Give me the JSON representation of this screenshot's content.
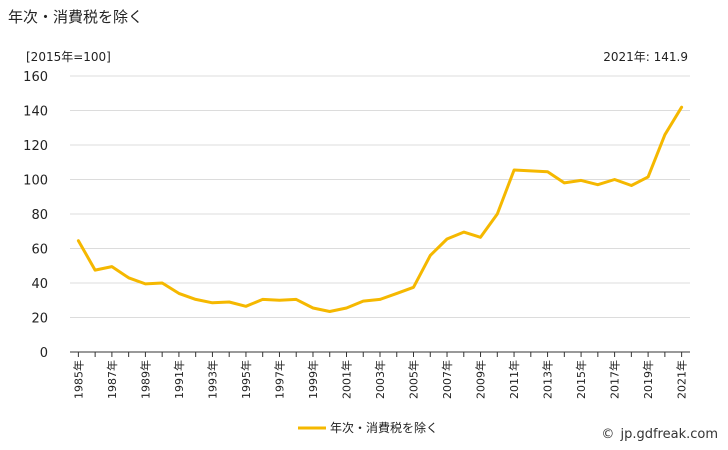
{
  "header": {
    "title": "年次・消費税を除く",
    "unit": "[2015年=100]",
    "latest_label": "2021年: 141.9"
  },
  "footer": {
    "credit_mark": "©",
    "credit": "jp.gdfreak.com"
  },
  "colors": {
    "series": "#f5b800",
    "grid": "#dcdcdc",
    "axis": "#333333"
  },
  "chart_data": {
    "type": "line",
    "title": "年次・消費税を除く",
    "xlabel": "",
    "ylabel": "",
    "ylim": [
      0,
      160
    ],
    "yticks": [
      0,
      20,
      40,
      60,
      80,
      100,
      120,
      140,
      160
    ],
    "grid": true,
    "legend_position": "bottom-center",
    "x": [
      "1985年",
      "1986年",
      "1987年",
      "1988年",
      "1989年",
      "1990年",
      "1991年",
      "1992年",
      "1993年",
      "1994年",
      "1995年",
      "1996年",
      "1997年",
      "1998年",
      "1999年",
      "2000年",
      "2001年",
      "2002年",
      "2003年",
      "2004年",
      "2005年",
      "2006年",
      "2007年",
      "2008年",
      "2009年",
      "2010年",
      "2011年",
      "2012年",
      "2013年",
      "2014年",
      "2015年",
      "2016年",
      "2017年",
      "2018年",
      "2019年",
      "2020年",
      "2021年"
    ],
    "xtick_labels": [
      "1985年",
      "1987年",
      "1989年",
      "1991年",
      "1993年",
      "1995年",
      "1997年",
      "1999年",
      "2001年",
      "2003年",
      "2005年",
      "2007年",
      "2009年",
      "2011年",
      "2013年",
      "2015年",
      "2017年",
      "2019年",
      "2021年"
    ],
    "series": [
      {
        "name": "年次・消費税を除く",
        "values": [
          64.5,
          47.5,
          49.5,
          43.0,
          39.5,
          40.0,
          34.0,
          30.5,
          28.5,
          29.0,
          26.5,
          30.5,
          30.0,
          30.5,
          25.5,
          23.5,
          25.5,
          29.5,
          30.5,
          34.0,
          37.5,
          56.0,
          65.5,
          69.5,
          66.5,
          80.0,
          105.5,
          105.0,
          104.5,
          98.0,
          99.5,
          97.0,
          100.0,
          96.5,
          101.5,
          126.0,
          141.9
        ]
      }
    ]
  }
}
